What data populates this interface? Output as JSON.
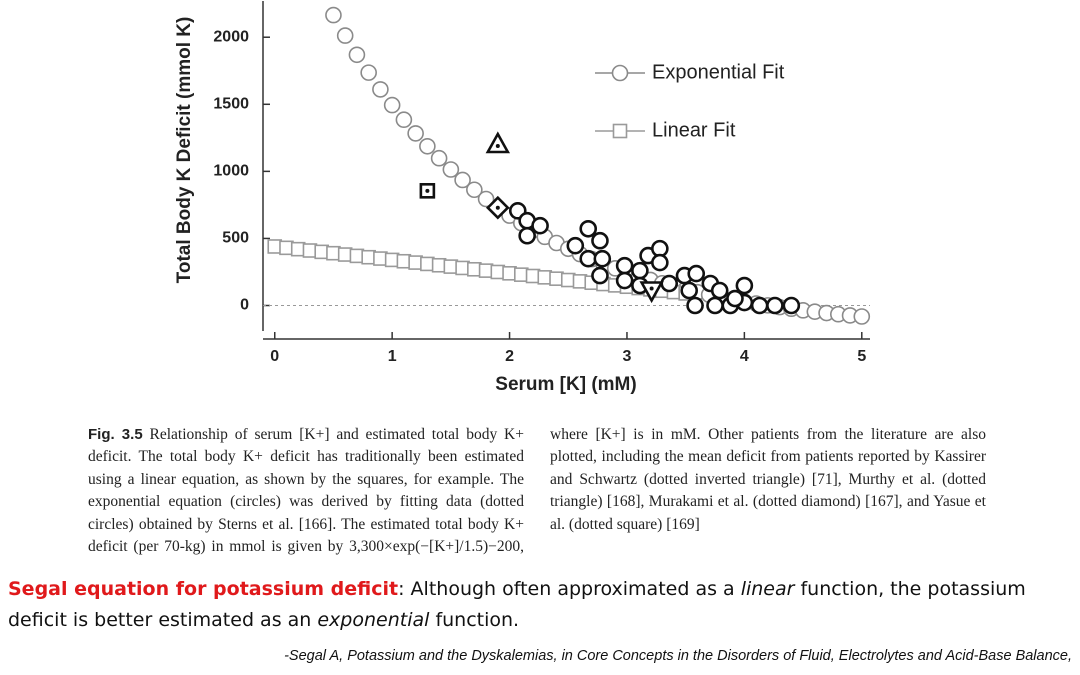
{
  "chart_data": {
    "type": "scatter",
    "ylabel": "Total Body K Deficit (mmol K)",
    "xlabel": "Serum [K] (mM)",
    "xlim": [
      -0.1,
      5.07
    ],
    "ylim": [
      -190,
      2270
    ],
    "xticks": [
      0,
      1,
      2,
      3,
      4,
      5
    ],
    "yticks": [
      0,
      500,
      1000,
      1500,
      2000
    ],
    "zero_line": true,
    "legend": "upper right",
    "series": [
      {
        "name": "Exponential Fit",
        "marker": "circle",
        "color": "#8a8a8a",
        "x": [
          0.5,
          0.6,
          0.7,
          0.8,
          0.9,
          1.0,
          1.1,
          1.2,
          1.3,
          1.4,
          1.5,
          1.6,
          1.7,
          1.8,
          1.9,
          2.0,
          2.1,
          2.2,
          2.3,
          2.4,
          2.5,
          2.6,
          2.7,
          2.8,
          2.9,
          3.0,
          3.1,
          3.2,
          3.3,
          3.4,
          3.5,
          3.6,
          3.7,
          3.8,
          3.9,
          4.0,
          4.1,
          4.2,
          4.3,
          4.4,
          4.5,
          4.6,
          4.7,
          4.8,
          4.9,
          5.0
        ],
        "values": [
          2165,
          2012,
          1869,
          1736,
          1611,
          1494,
          1385,
          1283,
          1187,
          1098,
          1014,
          936,
          863,
          794,
          730,
          670,
          614,
          561,
          512,
          466,
          423,
          383,
          346,
          310,
          277,
          247,
          218,
          191,
          166,
          142,
          120,
          99,
          80,
          62,
          45,
          29,
          15,
          1,
          -12,
          -24,
          -36,
          -46,
          -56,
          -65,
          -74,
          -82
        ]
      },
      {
        "name": "Linear Fit",
        "marker": "square",
        "color": "#9a9a9a",
        "x": [
          0,
          0.1,
          0.2,
          0.3,
          0.4,
          0.5,
          0.6,
          0.7,
          0.8,
          0.9,
          1.0,
          1.1,
          1.2,
          1.3,
          1.4,
          1.5,
          1.6,
          1.7,
          1.8,
          1.9,
          2.0,
          2.1,
          2.2,
          2.3,
          2.4,
          2.5,
          2.6,
          2.7,
          2.8,
          2.9,
          3.0,
          3.1,
          3.2,
          3.3,
          3.4,
          3.5
        ],
        "values": [
          440,
          430,
          420,
          410,
          400,
          390,
          380,
          370,
          360,
          350,
          340,
          330,
          320,
          310,
          300,
          290,
          280,
          270,
          260,
          250,
          240,
          230,
          220,
          210,
          200,
          190,
          180,
          170,
          160,
          150,
          140,
          130,
          120,
          110,
          100,
          90
        ]
      },
      {
        "marker": "circle",
        "color": "#111111",
        "x": [
          2.07,
          2.15,
          2.26,
          2.15,
          2.56,
          2.67,
          2.67,
          2.77,
          2.79,
          2.77,
          2.98,
          2.98,
          3.11,
          3.18,
          3.28,
          3.28,
          3.11,
          3.36,
          3.49,
          3.59,
          3.53,
          3.58,
          3.71,
          3.75,
          3.79,
          3.88,
          4.0,
          4.0,
          3.92,
          4.13,
          4.26,
          4.4
        ],
        "values": [
          706,
          632,
          595,
          520,
          446,
          572,
          349,
          483,
          349,
          223,
          297,
          186,
          260,
          372,
          424,
          320,
          149,
          164,
          223,
          238,
          112,
          0,
          164,
          0,
          112,
          0,
          149,
          22,
          52,
          0,
          0,
          0
        ]
      },
      {
        "marker": "square",
        "color": "#111111",
        "x": [
          1.3
        ],
        "values": [
          855
        ]
      },
      {
        "marker": "triangle",
        "color": "#111111",
        "x": [
          1.9
        ],
        "values": [
          1204
        ]
      },
      {
        "marker": "diamond",
        "color": "#111111",
        "x": [
          1.9
        ],
        "values": [
          729
        ]
      },
      {
        "marker": "triangle-down",
        "color": "#111111",
        "x": [
          3.21
        ],
        "values": [
          112
        ]
      }
    ]
  },
  "caption": {
    "label": "Fig. 3.5",
    "text": "Relationship of serum [K+] and estimated total body K+ deficit. The total body K+ deficit has traditionally been estimated using a linear equation, as shown by the squares, for example. The exponential equation (circles) was derived by fitting data (dotted circles) obtained by Sterns et al. [166]. The estimated total body K+ deficit (per 70-kg) in mmol is given by 3,300×exp(−[K+]/1.5)−200, where [K+] is in mM. Other patients from the literature are also plotted, including the mean deficit from patients reported by Kassirer and Schwartz (dotted inverted triangle) [71], Murthy et al. (dotted triangle) [168], Murakami et al. (dotted diamond) [167], and Yasue et al. (dotted square) [169]"
  },
  "body": {
    "parts": [
      "Segal equation for potassium deficit",
      ":  Although often approximated as a ",
      "linear",
      " function, the potassium deficit is better estimated as an ",
      "exponential",
      " function."
    ]
  },
  "citation": "-Segal A, Potassium and the Dyskalemias, in Core Concepts in the Disorders of Fluid, Electrolytes and Acid-Base Balance,"
}
